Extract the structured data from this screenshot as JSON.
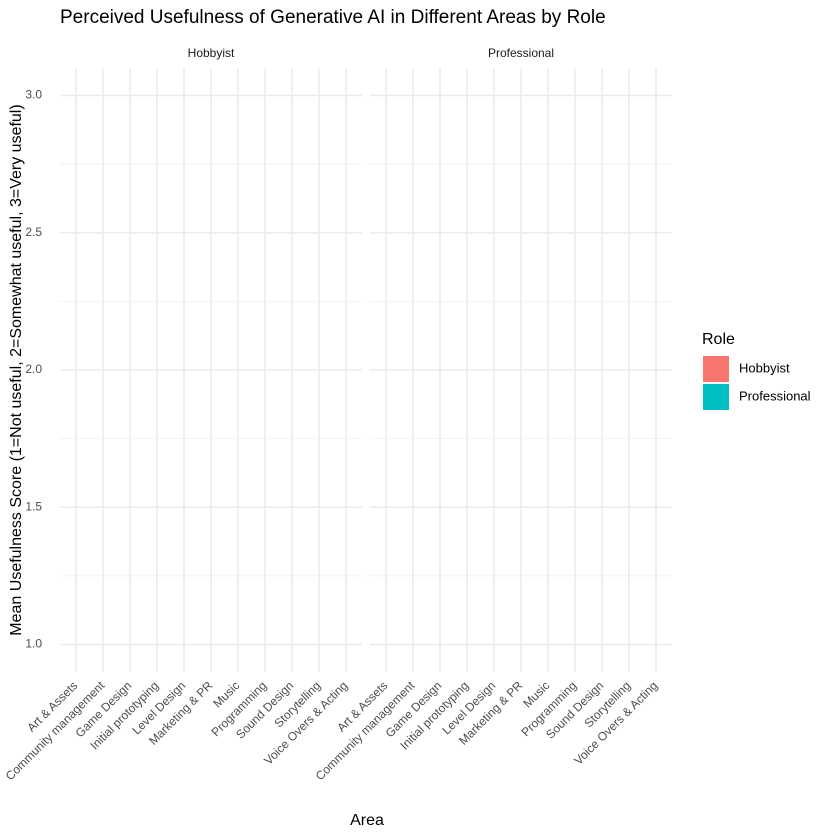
{
  "chart_data": {
    "type": "bar",
    "title": "Perceived Usefulness of Generative AI in Different Areas by Role",
    "x_label": "Area",
    "y_label": "Mean Usefulness Score (1=Not useful, 2=Somewhat useful, 3=Very useful)",
    "facets": [
      "Hobbyist",
      "Professional"
    ],
    "categories": [
      "Art & Assets",
      "Community management",
      "Game Design",
      "Initial prototyping",
      "Level Design",
      "Marketing & PR",
      "Music",
      "Programming",
      "Sound Design",
      "Storytelling",
      "Voice Overs & Acting"
    ],
    "legend_title": "Role",
    "series": [
      {
        "name": "Hobbyist",
        "color": "#F8766D"
      },
      {
        "name": "Professional",
        "color": "#00BFC4"
      }
    ],
    "ylim": [
      0.9,
      3.1
    ],
    "yticks": [
      {
        "value": 1,
        "label": "1.0"
      },
      1.5,
      {
        "value": 2,
        "label": "2.0"
      },
      2.5,
      {
        "value": 3,
        "label": "3.0"
      }
    ],
    "grid": true
  }
}
